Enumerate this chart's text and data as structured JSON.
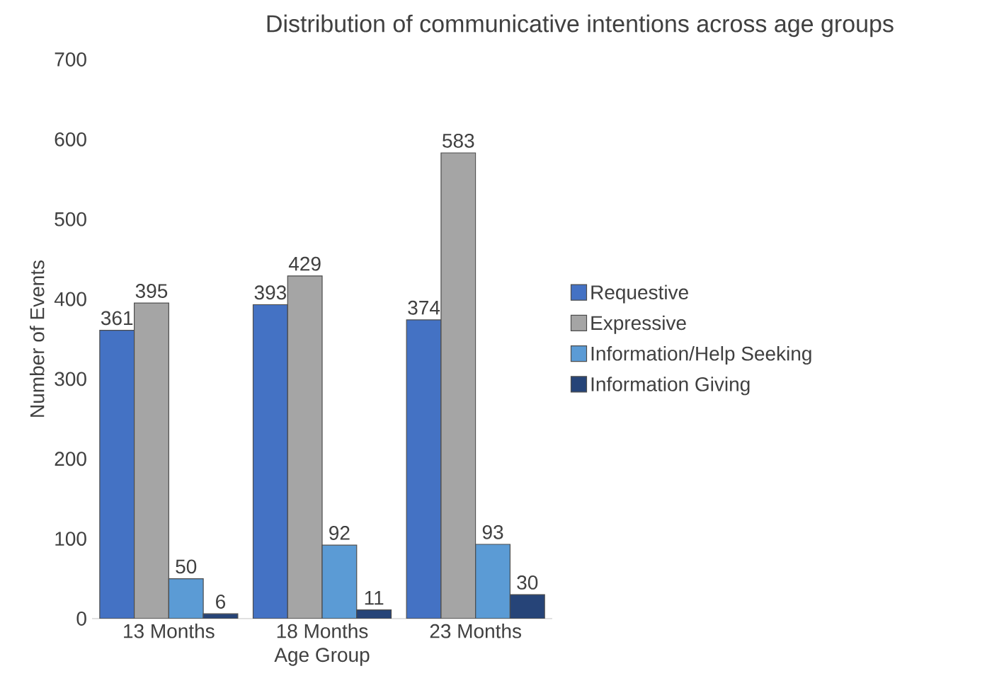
{
  "chart_data": {
    "type": "bar",
    "title": "Distribution of communicative intentions across age groups",
    "xlabel": "Age Group",
    "ylabel": "Number of Events",
    "categories": [
      "13 Months",
      "18 Months",
      "23 Months"
    ],
    "series": [
      {
        "name": "Requestive",
        "color": "#4472c4",
        "values": [
          361,
          393,
          374
        ]
      },
      {
        "name": "Expressive",
        "color": "#a5a5a5",
        "values": [
          395,
          429,
          583
        ]
      },
      {
        "name": "Information/Help Seeking",
        "color": "#5b9bd5",
        "values": [
          50,
          92,
          93
        ]
      },
      {
        "name": "Information Giving",
        "color": "#264478",
        "values": [
          6,
          11,
          30
        ]
      }
    ],
    "ylim": [
      0,
      700
    ],
    "yticks": [
      0,
      100,
      200,
      300,
      400,
      500,
      600,
      700
    ],
    "data_labels": true,
    "legend": "right",
    "grid": false
  }
}
